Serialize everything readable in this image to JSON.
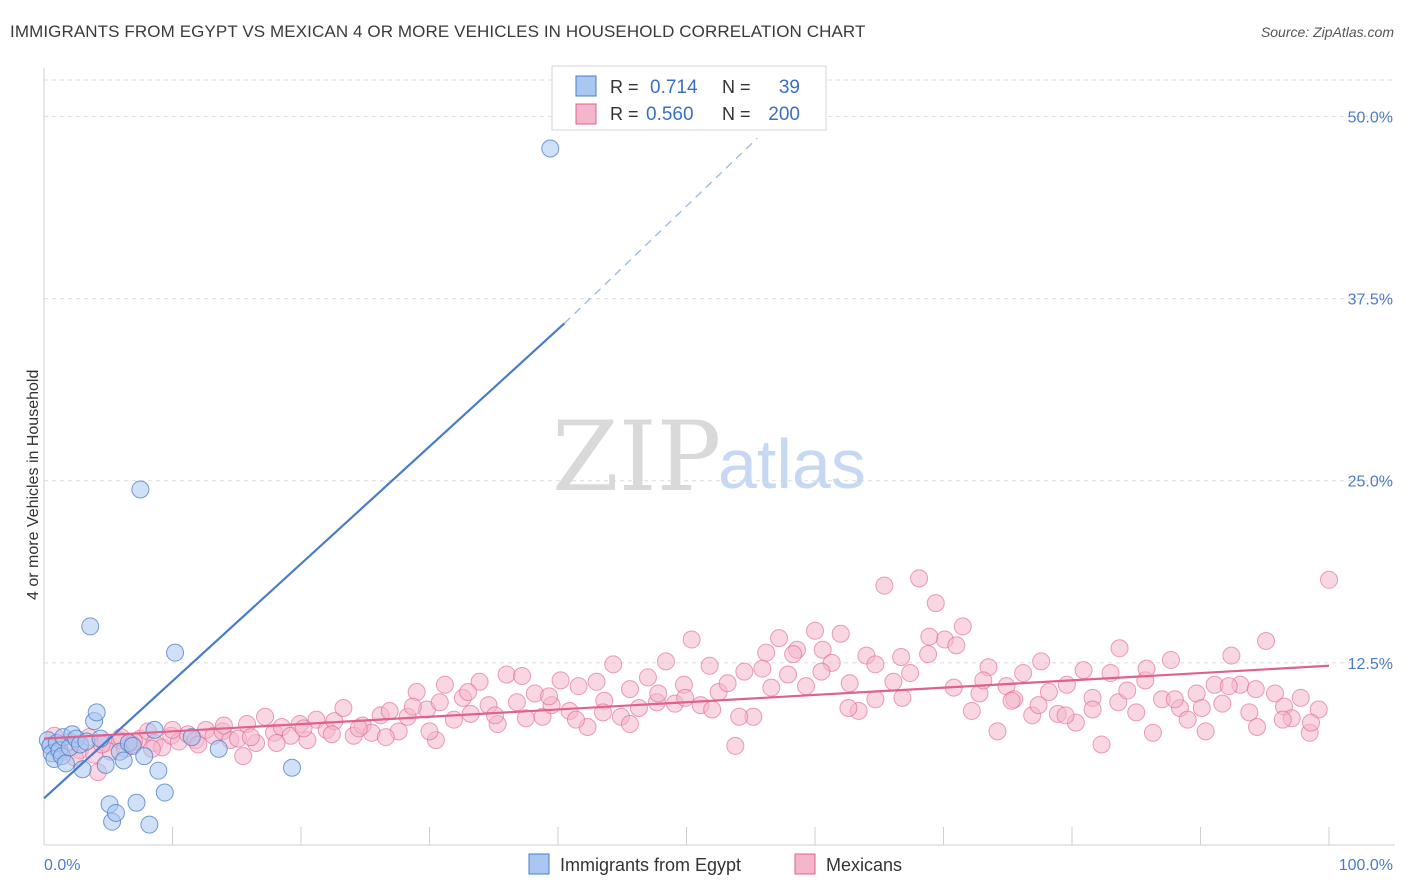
{
  "title": "IMMIGRANTS FROM EGYPT VS MEXICAN 4 OR MORE VEHICLES IN HOUSEHOLD CORRELATION CHART",
  "source": "Source: ZipAtlas.com",
  "watermark": {
    "zip": "ZIP",
    "atlas": "atlas"
  },
  "colors": {
    "blue": "#4a7cc8",
    "blue_fill": "#a9c7f0",
    "pink": "#e0608f",
    "pink_fill": "#f4b6cb",
    "grid": "#dcdcdc"
  },
  "legend": {
    "r_label": "R =",
    "n_label": "N =",
    "series": [
      {
        "r": "0.714",
        "n": "39"
      },
      {
        "r": "0.560",
        "n": "200"
      }
    ]
  },
  "chart_data": {
    "type": "scatter",
    "title": "IMMIGRANTS FROM EGYPT VS MEXICAN 4 OR MORE VEHICLES IN HOUSEHOLD CORRELATION CHART",
    "xlabel": "",
    "ylabel": "4 or more Vehicles in Household",
    "xlim": [
      0,
      100
    ],
    "ylim": [
      0,
      52.5
    ],
    "x_tick_labels": [
      "0.0%",
      "100.0%"
    ],
    "y_ticks": [
      12.5,
      25.0,
      37.5,
      50.0
    ],
    "y_tick_labels": [
      "12.5%",
      "25.0%",
      "37.5%",
      "50.0%"
    ],
    "grid": true,
    "legend_position": "top-center",
    "series": [
      {
        "name": "Immigrants from Egypt",
        "color": "#4a7cc8",
        "trend": {
          "x0": 0,
          "y0": 3.2,
          "x1": 40.5,
          "y1": 35.8,
          "dashed_to_x": 55.5,
          "dashed_to_y": 48.5
        },
        "points": [
          [
            0.3,
            7.2
          ],
          [
            0.5,
            6.8
          ],
          [
            0.6,
            6.3
          ],
          [
            0.8,
            5.9
          ],
          [
            1.0,
            7.0
          ],
          [
            1.2,
            6.5
          ],
          [
            1.4,
            6.1
          ],
          [
            1.5,
            7.4
          ],
          [
            1.7,
            5.6
          ],
          [
            2.0,
            6.7
          ],
          [
            2.2,
            7.6
          ],
          [
            2.5,
            7.3
          ],
          [
            2.8,
            6.9
          ],
          [
            3.0,
            5.2
          ],
          [
            3.3,
            7.1
          ],
          [
            3.6,
            15.0
          ],
          [
            3.9,
            8.5
          ],
          [
            4.1,
            9.1
          ],
          [
            4.4,
            7.3
          ],
          [
            4.8,
            5.5
          ],
          [
            5.1,
            2.8
          ],
          [
            5.3,
            1.6
          ],
          [
            5.6,
            2.2
          ],
          [
            5.9,
            6.4
          ],
          [
            6.2,
            5.8
          ],
          [
            6.6,
            7.0
          ],
          [
            6.9,
            6.8
          ],
          [
            7.2,
            2.9
          ],
          [
            7.5,
            24.4
          ],
          [
            7.8,
            6.1
          ],
          [
            8.2,
            1.4
          ],
          [
            8.6,
            7.9
          ],
          [
            8.9,
            5.1
          ],
          [
            9.4,
            3.6
          ],
          [
            10.2,
            13.2
          ],
          [
            11.5,
            7.4
          ],
          [
            13.6,
            6.6
          ],
          [
            19.3,
            5.3
          ],
          [
            39.4,
            47.8
          ]
        ]
      },
      {
        "name": "Mexicans",
        "color": "#e0608f",
        "trend": {
          "x0": 0,
          "y0": 7.3,
          "x1": 100,
          "y1": 12.3
        },
        "points": [
          [
            0.5,
            6.8
          ],
          [
            1.2,
            6.3
          ],
          [
            2.0,
            7.1
          ],
          [
            2.8,
            6.5
          ],
          [
            3.5,
            7.4
          ],
          [
            3.9,
            6.2
          ],
          [
            4.2,
            5.0
          ],
          [
            4.8,
            7.0
          ],
          [
            5.2,
            6.4
          ],
          [
            5.9,
            7.2
          ],
          [
            6.3,
            6.6
          ],
          [
            6.9,
            6.9
          ],
          [
            7.5,
            7.3
          ],
          [
            8.1,
            7.8
          ],
          [
            8.6,
            7.0
          ],
          [
            9.2,
            6.7
          ],
          [
            9.9,
            7.5
          ],
          [
            10.5,
            7.1
          ],
          [
            11.2,
            7.6
          ],
          [
            11.8,
            7.2
          ],
          [
            12.6,
            7.9
          ],
          [
            13.2,
            7.5
          ],
          [
            13.9,
            7.8
          ],
          [
            14.5,
            7.2
          ],
          [
            15.1,
            7.3
          ],
          [
            15.8,
            8.3
          ],
          [
            16.5,
            7.0
          ],
          [
            17.2,
            8.8
          ],
          [
            17.9,
            7.7
          ],
          [
            18.5,
            8.1
          ],
          [
            19.2,
            7.5
          ],
          [
            19.9,
            8.3
          ],
          [
            20.5,
            7.2
          ],
          [
            21.2,
            8.6
          ],
          [
            22.0,
            7.9
          ],
          [
            22.6,
            8.5
          ],
          [
            23.3,
            9.4
          ],
          [
            24.1,
            7.5
          ],
          [
            24.8,
            8.2
          ],
          [
            25.5,
            7.7
          ],
          [
            26.2,
            8.9
          ],
          [
            26.9,
            9.2
          ],
          [
            27.6,
            7.8
          ],
          [
            28.3,
            8.8
          ],
          [
            29.0,
            10.5
          ],
          [
            29.8,
            9.3
          ],
          [
            30.5,
            7.2
          ],
          [
            31.2,
            11.0
          ],
          [
            31.9,
            8.6
          ],
          [
            32.6,
            10.1
          ],
          [
            33.2,
            9.0
          ],
          [
            33.9,
            11.2
          ],
          [
            34.6,
            9.6
          ],
          [
            35.3,
            8.3
          ],
          [
            36.0,
            11.7
          ],
          [
            36.8,
            9.8
          ],
          [
            37.5,
            8.7
          ],
          [
            38.2,
            10.4
          ],
          [
            38.8,
            8.8
          ],
          [
            39.5,
            9.6
          ],
          [
            40.2,
            11.3
          ],
          [
            40.9,
            9.2
          ],
          [
            41.6,
            10.9
          ],
          [
            42.3,
            8.1
          ],
          [
            43.0,
            11.2
          ],
          [
            43.6,
            9.9
          ],
          [
            44.3,
            12.4
          ],
          [
            44.9,
            8.8
          ],
          [
            45.6,
            10.7
          ],
          [
            46.3,
            9.4
          ],
          [
            47.0,
            11.5
          ],
          [
            47.7,
            9.8
          ],
          [
            48.4,
            12.6
          ],
          [
            49.1,
            9.7
          ],
          [
            49.8,
            11.0
          ],
          [
            50.4,
            14.1
          ],
          [
            51.1,
            9.6
          ],
          [
            51.8,
            12.3
          ],
          [
            52.5,
            10.5
          ],
          [
            53.2,
            11.1
          ],
          [
            53.8,
            6.8
          ],
          [
            54.5,
            11.9
          ],
          [
            55.2,
            8.8
          ],
          [
            55.9,
            12.1
          ],
          [
            56.6,
            10.8
          ],
          [
            57.2,
            14.2
          ],
          [
            57.9,
            11.7
          ],
          [
            58.6,
            13.4
          ],
          [
            59.3,
            10.9
          ],
          [
            60.0,
            14.7
          ],
          [
            60.6,
            13.4
          ],
          [
            61.3,
            12.5
          ],
          [
            62.0,
            14.5
          ],
          [
            62.7,
            11.1
          ],
          [
            63.4,
            9.2
          ],
          [
            64.0,
            13.0
          ],
          [
            64.7,
            10.0
          ],
          [
            65.4,
            17.8
          ],
          [
            66.1,
            11.2
          ],
          [
            66.7,
            12.9
          ],
          [
            67.4,
            11.8
          ],
          [
            68.1,
            18.3
          ],
          [
            68.8,
            13.1
          ],
          [
            69.4,
            16.6
          ],
          [
            70.1,
            14.1
          ],
          [
            70.8,
            10.8
          ],
          [
            71.5,
            15.0
          ],
          [
            72.2,
            9.2
          ],
          [
            72.8,
            10.4
          ],
          [
            73.5,
            12.2
          ],
          [
            74.2,
            7.8
          ],
          [
            74.9,
            10.9
          ],
          [
            75.5,
            10.0
          ],
          [
            76.2,
            11.8
          ],
          [
            76.9,
            8.9
          ],
          [
            77.6,
            12.6
          ],
          [
            78.2,
            10.5
          ],
          [
            78.9,
            9.0
          ],
          [
            79.6,
            11.0
          ],
          [
            80.3,
            8.4
          ],
          [
            80.9,
            12.0
          ],
          [
            81.6,
            10.1
          ],
          [
            82.3,
            6.9
          ],
          [
            83.0,
            11.8
          ],
          [
            83.6,
            9.8
          ],
          [
            84.3,
            10.6
          ],
          [
            85.0,
            9.1
          ],
          [
            85.7,
            11.3
          ],
          [
            86.3,
            7.7
          ],
          [
            87.0,
            10.0
          ],
          [
            87.7,
            12.7
          ],
          [
            88.4,
            9.4
          ],
          [
            89.0,
            8.6
          ],
          [
            89.7,
            10.4
          ],
          [
            90.4,
            7.8
          ],
          [
            91.1,
            11.0
          ],
          [
            91.7,
            9.7
          ],
          [
            92.4,
            13.0
          ],
          [
            93.1,
            11.0
          ],
          [
            93.8,
            9.1
          ],
          [
            94.4,
            8.1
          ],
          [
            95.1,
            14.0
          ],
          [
            95.8,
            10.4
          ],
          [
            96.5,
            9.5
          ],
          [
            97.1,
            8.7
          ],
          [
            97.8,
            10.1
          ],
          [
            98.5,
            7.7
          ],
          [
            99.2,
            9.3
          ],
          [
            100.0,
            18.2
          ],
          [
            0.8,
            7.5
          ],
          [
            2.4,
            6.0
          ],
          [
            4.5,
            6.9
          ],
          [
            6.0,
            7.4
          ],
          [
            7.0,
            7.1
          ],
          [
            8.4,
            6.6
          ],
          [
            10.0,
            7.9
          ],
          [
            12.0,
            6.9
          ],
          [
            14.0,
            8.2
          ],
          [
            16.1,
            7.4
          ],
          [
            18.1,
            7.0
          ],
          [
            20.2,
            8.0
          ],
          [
            22.4,
            7.6
          ],
          [
            24.5,
            8.0
          ],
          [
            26.6,
            7.4
          ],
          [
            28.7,
            9.5
          ],
          [
            30.8,
            9.8
          ],
          [
            33.0,
            10.5
          ],
          [
            35.1,
            8.9
          ],
          [
            37.2,
            11.6
          ],
          [
            39.3,
            10.2
          ],
          [
            41.4,
            8.6
          ],
          [
            43.5,
            9.1
          ],
          [
            45.6,
            8.3
          ],
          [
            47.8,
            10.4
          ],
          [
            49.9,
            10.1
          ],
          [
            52.0,
            9.3
          ],
          [
            54.1,
            8.8
          ],
          [
            56.2,
            13.2
          ],
          [
            58.3,
            13.1
          ],
          [
            60.5,
            11.9
          ],
          [
            62.6,
            9.4
          ],
          [
            64.7,
            12.4
          ],
          [
            66.8,
            10.1
          ],
          [
            68.9,
            14.3
          ],
          [
            71.0,
            13.7
          ],
          [
            73.1,
            11.3
          ],
          [
            75.3,
            9.9
          ],
          [
            77.4,
            9.6
          ],
          [
            79.5,
            8.9
          ],
          [
            81.6,
            9.3
          ],
          [
            83.7,
            13.5
          ],
          [
            85.8,
            12.1
          ],
          [
            88.0,
            10.0
          ],
          [
            90.1,
            9.4
          ],
          [
            92.2,
            10.9
          ],
          [
            94.3,
            10.7
          ],
          [
            96.4,
            8.6
          ],
          [
            98.6,
            8.4
          ],
          [
            30.0,
            7.8
          ],
          [
            15.5,
            6.1
          ]
        ]
      }
    ]
  },
  "bottom_legend": [
    "Immigrants from Egypt",
    "Mexicans"
  ]
}
